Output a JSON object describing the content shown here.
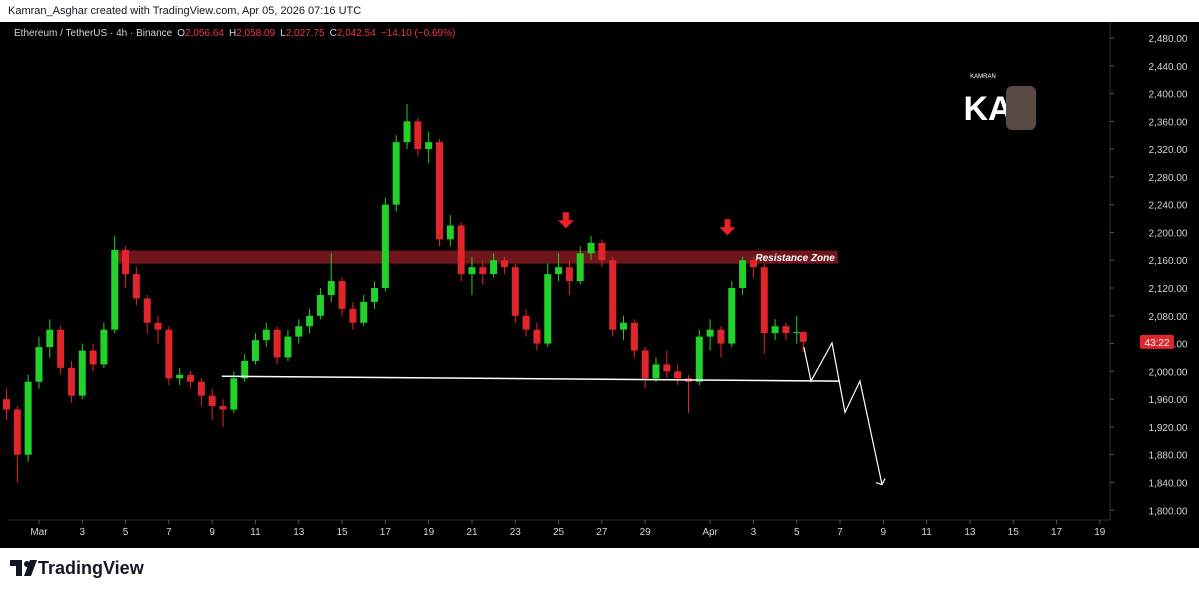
{
  "header": "Kamran_Asghar created with TradingView.com, Apr 05, 2026 07:16 UTC",
  "footer": "TradingView",
  "chart_data": {
    "type": "candlestick",
    "title": "Ethereum / TetherUS · 4h · Binance",
    "ohlc_labels": [
      {
        "label": "O",
        "value": "2,056.64"
      },
      {
        "label": "H",
        "value": "2,058.09"
      },
      {
        "label": "L",
        "value": "2,027.75"
      },
      {
        "label": "C",
        "value": "2,042.54"
      }
    ],
    "change": "−14.10 (−0.69%)",
    "countdown": "43:22",
    "logo": {
      "text": "KA",
      "subtitle": "KAMRAN"
    },
    "up_color": "#22d12a",
    "down_color": "#e0252b",
    "grid": false,
    "xlim": [
      -1.43,
      49.47
    ],
    "ylim": [
      1786,
      2503
    ],
    "xticks": [
      {
        "value": 0,
        "label": "Mar"
      },
      {
        "value": 2,
        "label": "3"
      },
      {
        "value": 4,
        "label": "5"
      },
      {
        "value": 6,
        "label": "7"
      },
      {
        "value": 8,
        "label": "9"
      },
      {
        "value": 10,
        "label": "11"
      },
      {
        "value": 12,
        "label": "13"
      },
      {
        "value": 14,
        "label": "15"
      },
      {
        "value": 16,
        "label": "17"
      },
      {
        "value": 18,
        "label": "19"
      },
      {
        "value": 20,
        "label": "21"
      },
      {
        "value": 22,
        "label": "23"
      },
      {
        "value": 24,
        "label": "25"
      },
      {
        "value": 26,
        "label": "27"
      },
      {
        "value": 28,
        "label": "29"
      },
      {
        "value": 31,
        "label": "Apr"
      },
      {
        "value": 33,
        "label": "3"
      },
      {
        "value": 35,
        "label": "5"
      },
      {
        "value": 37,
        "label": "7"
      },
      {
        "value": 39,
        "label": "9"
      },
      {
        "value": 41,
        "label": "11"
      },
      {
        "value": 43,
        "label": "13"
      },
      {
        "value": 45,
        "label": "15"
      },
      {
        "value": 47,
        "label": "17"
      },
      {
        "value": 49,
        "label": "19"
      }
    ],
    "yticks": [
      {
        "value": 1800,
        "label": "1,800.00"
      },
      {
        "value": 1840,
        "label": "1,840.00"
      },
      {
        "value": 1880,
        "label": "1,880.00"
      },
      {
        "value": 1920,
        "label": "1,920.00"
      },
      {
        "value": 1960,
        "label": "1,960.00"
      },
      {
        "value": 2000,
        "label": "2,000.00"
      },
      {
        "value": 2040,
        "label": "2,040.00"
      },
      {
        "value": 2080,
        "label": "2,080.00"
      },
      {
        "value": 2120,
        "label": "2,120.00"
      },
      {
        "value": 2160,
        "label": "2,160.00"
      },
      {
        "value": 2200,
        "label": "2,200.00"
      },
      {
        "value": 2240,
        "label": "2,240.00"
      },
      {
        "value": 2280,
        "label": "2,280.00"
      },
      {
        "value": 2320,
        "label": "2,320.00"
      },
      {
        "value": 2360,
        "label": "2,360.00"
      },
      {
        "value": 2400,
        "label": "2,400.00"
      },
      {
        "value": 2440,
        "label": "2,440.00"
      },
      {
        "value": 2480,
        "label": "2,480.00"
      }
    ],
    "x": [
      -1.5,
      -1,
      -0.5,
      0,
      0.5,
      1,
      1.5,
      2,
      2.5,
      3,
      3.5,
      4,
      4.5,
      5,
      5.5,
      6,
      6.5,
      7,
      7.5,
      8,
      8.5,
      9,
      9.5,
      10,
      10.5,
      11,
      11.5,
      12,
      12.5,
      13,
      13.5,
      14,
      14.5,
      15,
      15.5,
      16,
      16.5,
      17,
      17.5,
      18,
      18.5,
      19,
      19.5,
      20,
      20.5,
      21,
      21.5,
      22,
      22.5,
      23,
      23.5,
      24,
      24.5,
      25,
      25.5,
      26,
      26.5,
      27,
      27.5,
      28,
      28.5,
      29,
      29.5,
      30,
      30.5,
      31,
      31.5,
      32,
      32.5,
      33,
      33.5,
      34,
      34.5,
      35,
      35.3
    ],
    "open": [
      1960,
      1945,
      1880,
      1985,
      2035,
      2060,
      2005,
      1965,
      2030,
      2010,
      2060,
      2175,
      2140,
      2105,
      2070,
      2060,
      1990,
      1995,
      1985,
      1965,
      1950,
      1945,
      1990,
      2015,
      2045,
      2060,
      2020,
      2050,
      2065,
      2080,
      2110,
      2130,
      2090,
      2070,
      2100,
      2120,
      2240,
      2330,
      2360,
      2320,
      2330,
      2190,
      2210,
      2140,
      2150,
      2140,
      2160,
      2150,
      2080,
      2060,
      2040,
      2140,
      2150,
      2130,
      2170,
      2185,
      2160,
      2060,
      2070,
      2030,
      1990,
      2010,
      2000,
      1990,
      1985,
      2050,
      2060,
      2040,
      2120,
      2160,
      2150,
      2055,
      2065,
      2055,
      2056.64
    ],
    "high": [
      1975,
      1950,
      1995,
      2050,
      2075,
      2065,
      2015,
      2040,
      2040,
      2070,
      2195,
      2180,
      2150,
      2110,
      2080,
      2065,
      2005,
      2000,
      1990,
      1975,
      1960,
      2000,
      2025,
      2055,
      2070,
      2065,
      2060,
      2075,
      2090,
      2120,
      2170,
      2135,
      2100,
      2110,
      2130,
      2250,
      2340,
      2385,
      2365,
      2345,
      2335,
      2225,
      2215,
      2165,
      2160,
      2170,
      2165,
      2155,
      2090,
      2070,
      2155,
      2170,
      2160,
      2180,
      2195,
      2190,
      2165,
      2080,
      2075,
      2035,
      2020,
      2030,
      2010,
      1995,
      2060,
      2075,
      2065,
      2130,
      2165,
      2165,
      2155,
      2075,
      2070,
      2080,
      2058.09
    ],
    "low": [
      1930,
      1840,
      1870,
      1975,
      2020,
      1995,
      1955,
      1960,
      2000,
      2005,
      2055,
      2120,
      2095,
      2055,
      2040,
      1980,
      1980,
      1975,
      1950,
      1930,
      1920,
      1940,
      1985,
      2010,
      2035,
      2010,
      2015,
      2040,
      2055,
      2075,
      2100,
      2080,
      2060,
      2065,
      2090,
      2115,
      2230,
      2320,
      2310,
      2300,
      2180,
      2180,
      2130,
      2110,
      2125,
      2135,
      2140,
      2070,
      2050,
      2030,
      2035,
      2130,
      2110,
      2125,
      2160,
      2150,
      2050,
      2045,
      2020,
      1975,
      1985,
      1990,
      1980,
      1940,
      1980,
      2030,
      2020,
      2035,
      2110,
      2135,
      2025,
      2045,
      2045,
      2040,
      2027.75
    ],
    "close": [
      1945,
      1880,
      1985,
      2035,
      2060,
      2005,
      1965,
      2030,
      2010,
      2060,
      2175,
      2140,
      2105,
      2070,
      2060,
      1990,
      1995,
      1985,
      1965,
      1950,
      1945,
      1990,
      2015,
      2045,
      2060,
      2020,
      2050,
      2065,
      2080,
      2110,
      2130,
      2090,
      2070,
      2100,
      2120,
      2240,
      2330,
      2360,
      2320,
      2330,
      2190,
      2210,
      2140,
      2150,
      2140,
      2160,
      2150,
      2080,
      2060,
      2040,
      2140,
      2150,
      2130,
      2170,
      2185,
      2160,
      2060,
      2070,
      2030,
      1990,
      2010,
      2000,
      1990,
      1985,
      2050,
      2060,
      2040,
      2120,
      2160,
      2150,
      2055,
      2065,
      2055,
      2056.64,
      2042.54
    ],
    "annotations": {
      "resistance_zone": {
        "label": "Resistance Zone",
        "x": [
          3.65,
          36.9
        ],
        "y": [
          2155,
          2174
        ]
      },
      "support_line": {
        "x": [
          8.45,
          37.0
        ],
        "y": [
          1993,
          1986
        ]
      },
      "projection": {
        "x": [
          35.33,
          35.66,
          36.63,
          37.23,
          37.92,
          38.94
        ],
        "y": [
          2035,
          1986,
          2041,
          1941,
          1986,
          1837
        ]
      },
      "arrows": {
        "x": [
          24.34,
          31.8
        ],
        "y": [
          2206,
          2196
        ]
      }
    }
  }
}
